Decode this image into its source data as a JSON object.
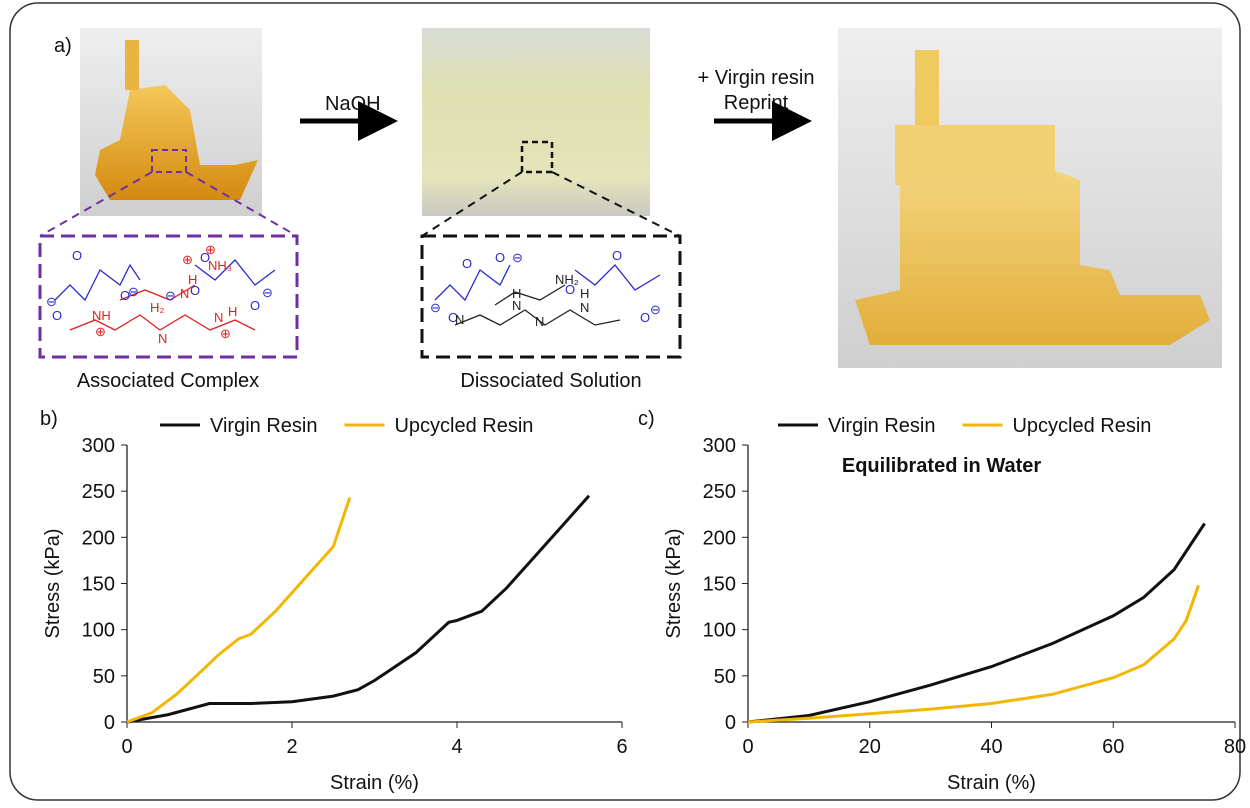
{
  "panel_a": {
    "label": "a)",
    "arrow1": "NaOH",
    "arrow2_line1": "+ Virgin resin",
    "arrow2_line2": "Reprint",
    "caption_left": "Associated Complex",
    "caption_mid": "Dissociated Solution",
    "chem_left": [
      "O",
      "⊖",
      "O",
      "O",
      "⊖",
      "⊖",
      "O",
      "O",
      "O",
      "⊖",
      "NH₃",
      "⊕",
      "H",
      "N",
      "⊕",
      "NH",
      "⊕",
      "H₂",
      "N",
      "N",
      "H",
      "⊕"
    ],
    "chem_mid": [
      "O",
      "⊖",
      "O",
      "O",
      "⊖",
      "O",
      "O",
      "O",
      "⊖",
      "H",
      "N",
      "NH₂",
      "N",
      "N",
      "H",
      "N"
    ]
  },
  "chart_data": [
    {
      "type": "line",
      "panel_label": "b)",
      "x_label": "Strain (%)",
      "y_label": "Stress (kPa)",
      "xlim": [
        0,
        6
      ],
      "xticks": [
        0,
        2,
        4,
        6
      ],
      "ylim": [
        0,
        300
      ],
      "yticks": [
        0,
        50,
        100,
        150,
        200,
        250,
        300
      ],
      "series": [
        {
          "name": "Virgin Resin",
          "color": "#111111",
          "x": [
            0,
            0.5,
            1,
            1.5,
            2,
            2.5,
            2.8,
            3,
            3.5,
            3.9,
            4,
            4.3,
            4.6,
            5,
            5.3,
            5.6
          ],
          "values": [
            0,
            8,
            20,
            20,
            22,
            28,
            35,
            45,
            75,
            108,
            110,
            120,
            145,
            185,
            215,
            245
          ]
        },
        {
          "name": "Upcycled Resin",
          "color": "#f2b705",
          "x": [
            0,
            0.3,
            0.6,
            0.9,
            1.1,
            1.35,
            1.5,
            1.8,
            2,
            2.3,
            2.5,
            2.7
          ],
          "values": [
            0,
            10,
            30,
            55,
            72,
            90,
            95,
            120,
            140,
            170,
            190,
            243
          ]
        }
      ]
    },
    {
      "type": "line",
      "panel_label": "c)",
      "x_label": "Strain (%)",
      "y_label": "Stress (kPa)",
      "annotation": "Equilibrated in Water",
      "annotation_color": "#1f7ac4",
      "xlim": [
        0,
        80
      ],
      "xticks": [
        0,
        20,
        40,
        60,
        80
      ],
      "ylim": [
        0,
        300
      ],
      "yticks": [
        0,
        50,
        100,
        150,
        200,
        250,
        300
      ],
      "series": [
        {
          "name": "Virgin Resin",
          "color": "#111111",
          "x": [
            0,
            10,
            20,
            30,
            40,
            50,
            60,
            65,
            70,
            75
          ],
          "values": [
            0,
            7,
            22,
            40,
            60,
            85,
            115,
            135,
            165,
            215
          ]
        },
        {
          "name": "Upcycled Resin",
          "color": "#f2b705",
          "x": [
            0,
            10,
            20,
            30,
            40,
            50,
            60,
            65,
            70,
            72,
            74
          ],
          "values": [
            0,
            4,
            9,
            14,
            20,
            30,
            48,
            62,
            90,
            110,
            148
          ]
        }
      ]
    }
  ]
}
